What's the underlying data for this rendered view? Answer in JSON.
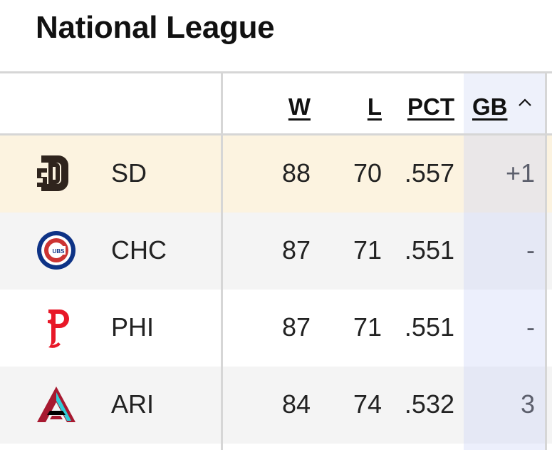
{
  "title": "National League",
  "columns": {
    "w": "W",
    "l": "L",
    "pct": "PCT",
    "gb": "GB"
  },
  "sort": {
    "column": "GB",
    "direction": "ascending",
    "icon": "chevron-up-icon"
  },
  "rows": [
    {
      "team": "SD",
      "logo": "padres-logo",
      "w": "88",
      "l": "70",
      "pct": ".557",
      "gb": "+1",
      "highlighted": true
    },
    {
      "team": "CHC",
      "logo": "cubs-logo",
      "w": "87",
      "l": "71",
      "pct": ".551",
      "gb": "-",
      "highlighted": false
    },
    {
      "team": "PHI",
      "logo": "phillies-logo",
      "w": "87",
      "l": "71",
      "pct": ".551",
      "gb": "-",
      "highlighted": false
    },
    {
      "team": "ARI",
      "logo": "diamondbacks-logo",
      "w": "84",
      "l": "74",
      "pct": ".532",
      "gb": "3",
      "highlighted": false
    }
  ],
  "colors": {
    "highlight_row": "#fcf3e0",
    "alt_row": "#f4f4f4",
    "sorted_column": "#dde3f6"
  }
}
